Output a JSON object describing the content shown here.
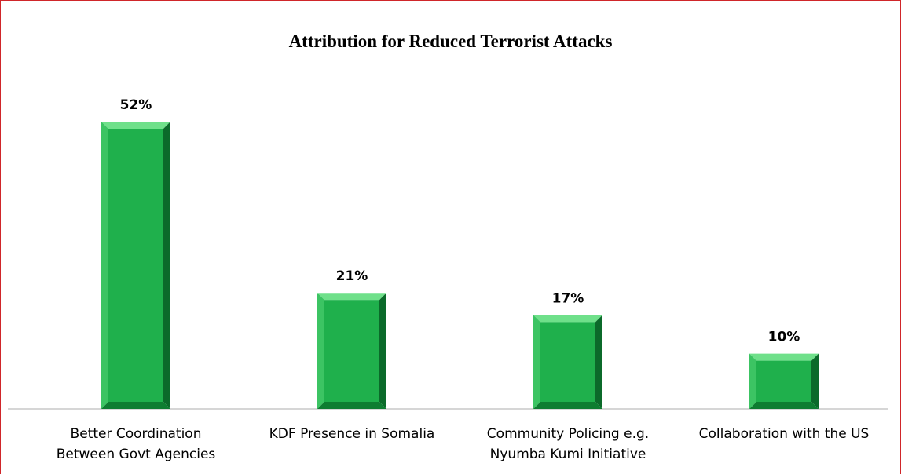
{
  "chart_data": {
    "type": "bar",
    "title": "Attribution for Reduced Terrorist Attacks",
    "xlabel": "",
    "ylabel": "",
    "categories": [
      [
        "Better Coordination",
        "Between Govt Agencies"
      ],
      [
        "KDF Presence in Somalia"
      ],
      [
        "Community Policing e.g.",
        "Nyumba Kumi Initiative"
      ],
      [
        "Collaboration with the US"
      ]
    ],
    "values": [
      52,
      21,
      17,
      10
    ],
    "value_labels": [
      "52%",
      "21%",
      "17%",
      "10%"
    ],
    "ylim": [
      0,
      52
    ],
    "grid": false,
    "legend": "none",
    "colors": {
      "bar_face": "#1fb04c",
      "bar_light": "#6fe08a",
      "bar_dark": "#0b6a2a",
      "border": "#d0262a",
      "axis": "#c8c8c8"
    }
  }
}
